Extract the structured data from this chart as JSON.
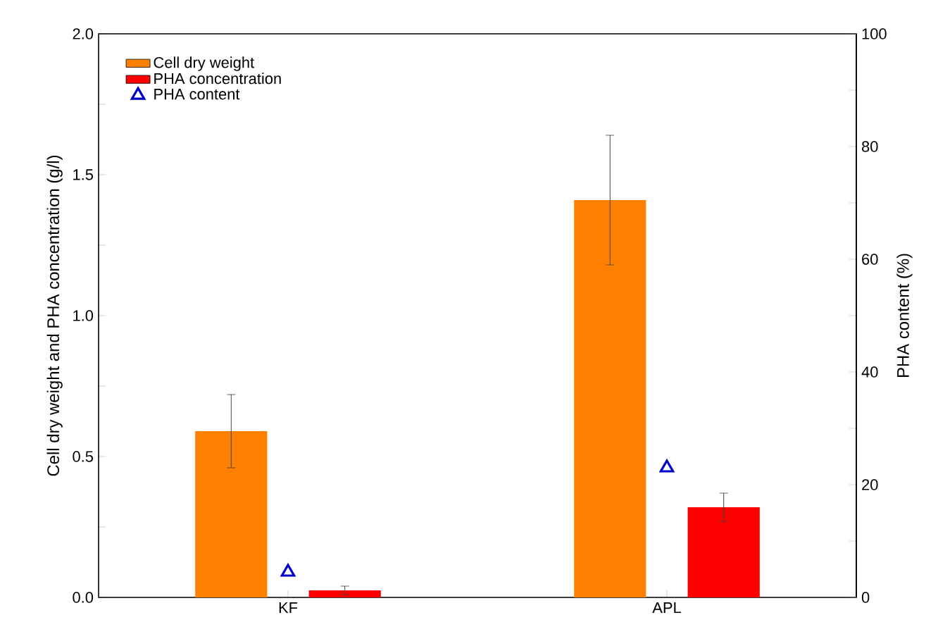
{
  "chart_data": {
    "type": "bar",
    "categories": [
      "KF",
      "APL"
    ],
    "xlabel": null,
    "ylabel": "Cell dry weight and PHA concentration (g/l)",
    "y2label": "PHA content (%)",
    "series": [
      {
        "name": "Cell dry weight",
        "color": "#ff8000",
        "values": [
          0.59,
          1.41
        ],
        "errors": [
          0.13,
          0.23
        ]
      },
      {
        "name": "PHA concentration",
        "color": "#ff0000",
        "values": [
          0.025,
          0.32
        ],
        "errors": [
          0.015,
          0.05
        ]
      },
      {
        "name": "PHA content",
        "type": "scatter",
        "axis": "y2",
        "marker": "triangle",
        "color": "#0000cc",
        "x": [
          "KF",
          "APL"
        ],
        "values": [
          4.5,
          23
        ]
      }
    ],
    "ylim": [
      0,
      2
    ],
    "yticks": [
      {
        "value": 0,
        "label": "0.0"
      },
      {
        "value": 0.25,
        "label": null
      },
      {
        "value": 0.5,
        "label": "0.5"
      },
      {
        "value": 0.75,
        "label": null
      },
      {
        "value": 1,
        "label": "1.0"
      },
      {
        "value": 1.25,
        "label": null
      },
      {
        "value": 1.5,
        "label": "1.5"
      },
      {
        "value": 1.75,
        "label": null
      },
      {
        "value": 2,
        "label": "2.0"
      }
    ],
    "y2lim": [
      0,
      100
    ],
    "y2ticks": [
      0,
      {
        "value": 10,
        "label": null
      },
      20,
      {
        "value": 30,
        "label": null
      },
      40,
      {
        "value": 50,
        "label": null
      },
      60,
      {
        "value": 70,
        "label": null
      },
      80,
      {
        "value": 90,
        "label": null
      },
      100
    ],
    "legend": "top left"
  }
}
